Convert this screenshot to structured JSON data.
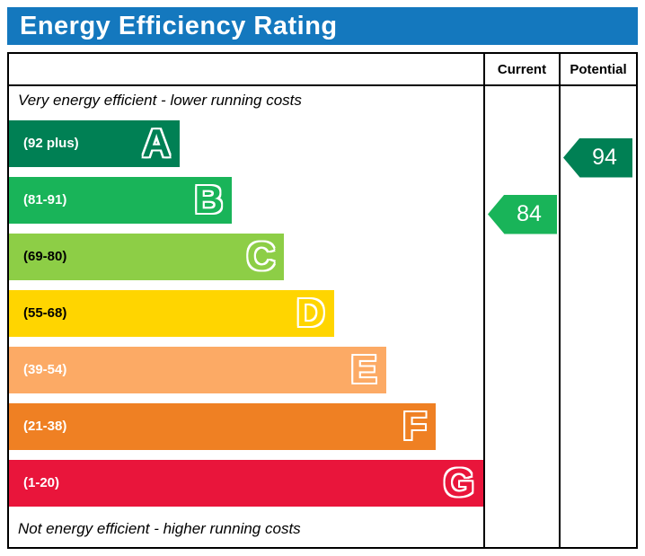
{
  "title": "Energy Efficiency Rating",
  "columns": {
    "current": "Current",
    "potential": "Potential"
  },
  "top_note": "Very energy efficient - lower running costs",
  "bottom_note": "Not energy efficient - higher running costs",
  "colors": {
    "title_bar": "#1478be",
    "border": "#000000"
  },
  "chart_data": {
    "type": "bar",
    "title": "Energy Efficiency Rating",
    "bands": [
      {
        "letter": "A",
        "range": "(92 plus)",
        "color": "#008054",
        "range_text_color": "#ffffff",
        "width_pct": 36
      },
      {
        "letter": "B",
        "range": "(81-91)",
        "color": "#19b459",
        "range_text_color": "#ffffff",
        "width_pct": 47
      },
      {
        "letter": "C",
        "range": "(69-80)",
        "color": "#8dce46",
        "range_text_color": "#000000",
        "width_pct": 58
      },
      {
        "letter": "D",
        "range": "(55-68)",
        "color": "#ffd500",
        "range_text_color": "#000000",
        "width_pct": 68.5
      },
      {
        "letter": "E",
        "range": "(39-54)",
        "color": "#fcaa65",
        "range_text_color": "#ffffff",
        "width_pct": 79.5
      },
      {
        "letter": "F",
        "range": "(21-38)",
        "color": "#ef8023",
        "range_text_color": "#ffffff",
        "width_pct": 90
      },
      {
        "letter": "G",
        "range": "(1-20)",
        "color": "#e9153b",
        "range_text_color": "#ffffff",
        "width_pct": 100
      }
    ],
    "current": {
      "value": "84",
      "band": "B",
      "band_index": 1,
      "color": "#19b459"
    },
    "potential": {
      "value": "94",
      "band": "A",
      "band_index": 0,
      "color": "#008054"
    }
  }
}
